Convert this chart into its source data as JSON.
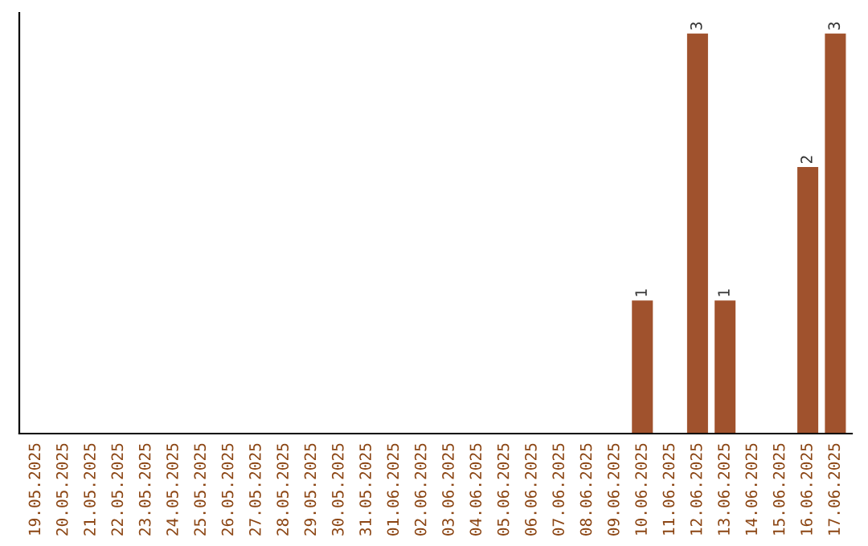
{
  "chart_data": {
    "type": "bar",
    "categories": [
      "19.05.2025",
      "20.05.2025",
      "21.05.2025",
      "22.05.2025",
      "23.05.2025",
      "24.05.2025",
      "25.05.2025",
      "26.05.2025",
      "27.05.2025",
      "28.05.2025",
      "29.05.2025",
      "30.05.2025",
      "31.05.2025",
      "01.06.2025",
      "02.06.2025",
      "03.06.2025",
      "04.06.2025",
      "05.06.2025",
      "06.06.2025",
      "07.06.2025",
      "08.06.2025",
      "09.06.2025",
      "10.06.2025",
      "11.06.2025",
      "12.06.2025",
      "13.06.2025",
      "14.06.2025",
      "15.06.2025",
      "16.06.2025",
      "17.06.2025"
    ],
    "values": [
      null,
      null,
      null,
      null,
      null,
      null,
      null,
      null,
      null,
      null,
      null,
      null,
      null,
      null,
      null,
      null,
      null,
      null,
      null,
      null,
      null,
      null,
      1,
      null,
      3,
      1,
      null,
      null,
      2,
      3
    ],
    "value_labels": [
      null,
      null,
      null,
      null,
      null,
      null,
      null,
      null,
      null,
      null,
      null,
      null,
      null,
      null,
      null,
      null,
      null,
      null,
      null,
      null,
      null,
      null,
      "1",
      null,
      "3",
      "1",
      null,
      null,
      "2",
      "3"
    ],
    "color": "#a0522d",
    "tick_labels": "x",
    "grid": false
  }
}
